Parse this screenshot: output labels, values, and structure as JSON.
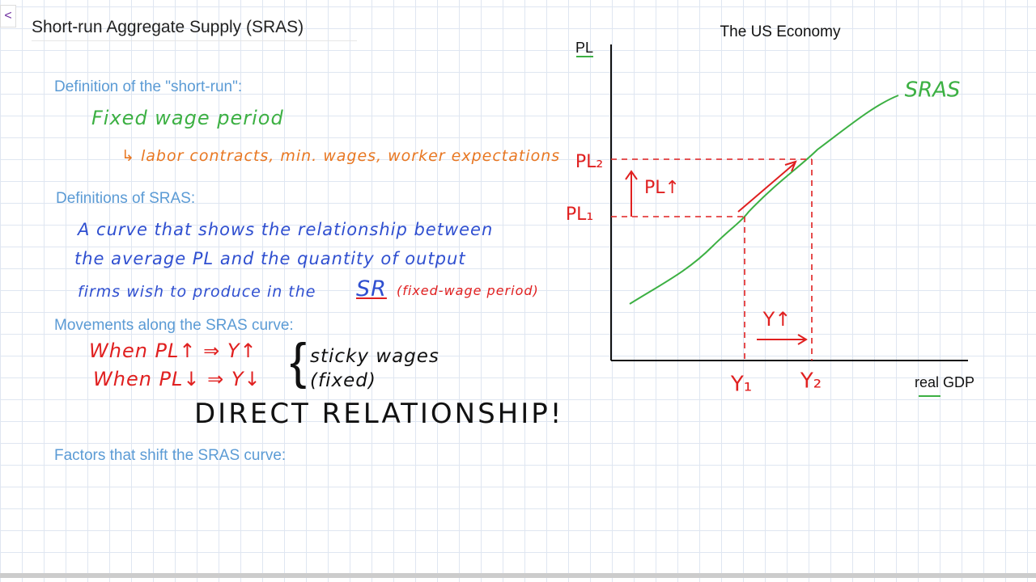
{
  "nav": {
    "back": "<"
  },
  "page": {
    "title": "Short-run Aggregate Supply (SRAS)"
  },
  "sections": [
    {
      "heading": "Definition of the \"short-run\":",
      "notes": [
        "Fixed wage period",
        "labor contracts, min. wages, worker expectations"
      ]
    },
    {
      "heading": "Definitions of SRAS:",
      "notes": [
        "A curve that shows the relationship between",
        "the average PL and the quantity of output",
        "firms wish to produce in the",
        "SR",
        "(fixed-wage period)"
      ]
    },
    {
      "heading": "Movements along the SRAS curve:",
      "notes": [
        "When PL↑ ⇒ Y↑",
        "When PL↓ ⇒ Y↓",
        "sticky wages",
        "(fixed)",
        "DIRECT RELATIONSHIP!"
      ]
    },
    {
      "heading": "Factors that shift the SRAS curve:"
    }
  ],
  "graph": {
    "title": "The US Economy",
    "y_axis": "PL",
    "x_axis": "real GDP",
    "curve": "SRAS",
    "pl2": "PL₂",
    "pl1": "PL₁",
    "pl_up": "PL↑",
    "y_up": "Y↑",
    "y1": "Y₁",
    "y2": "Y₂"
  }
}
